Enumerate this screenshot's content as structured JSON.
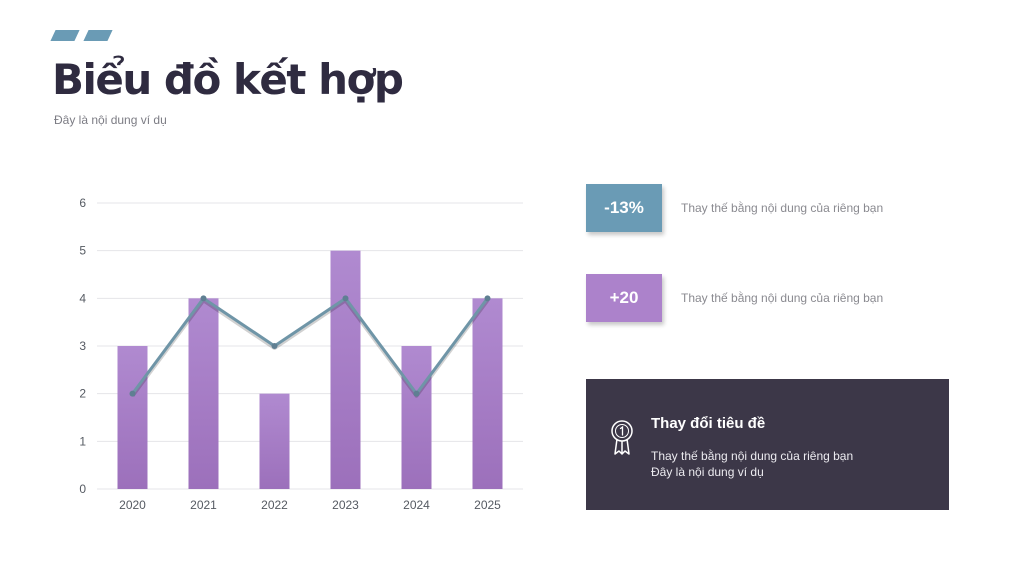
{
  "header": {
    "title": "Biểu đồ kết hợp",
    "subtitle": "Đây là nội dung ví dụ"
  },
  "chart_data": {
    "type": "bar+line",
    "categories": [
      "2020",
      "2021",
      "2022",
      "2023",
      "2024",
      "2025"
    ],
    "series": [
      {
        "name": "bar",
        "type": "bar",
        "values": [
          3,
          4,
          2,
          5,
          3,
          4
        ],
        "color": "#a57cc4"
      },
      {
        "name": "line",
        "type": "line",
        "values": [
          2,
          4,
          3,
          4,
          2,
          4
        ],
        "color": "#6f95a7"
      }
    ],
    "yticks": [
      "0",
      "1",
      "2",
      "3",
      "4",
      "5",
      "6"
    ],
    "ylim": [
      0,
      6
    ],
    "grid": true,
    "title": "",
    "xlabel": "",
    "ylabel": ""
  },
  "stats": [
    {
      "value": "-13%",
      "text": "Thay thế bằng nội dung của riêng bạn",
      "color": "#6a9bb5"
    },
    {
      "value": "+20",
      "text": "Thay thế bằng nội dung của riêng bạn",
      "color": "#ac82cb"
    }
  ],
  "card": {
    "icon": "medal-icon",
    "title": "Thay đổi tiêu đề",
    "line1": "Thay thế bằng nội dung của riêng bạn",
    "line2": "Đây là nội dung ví dụ"
  }
}
